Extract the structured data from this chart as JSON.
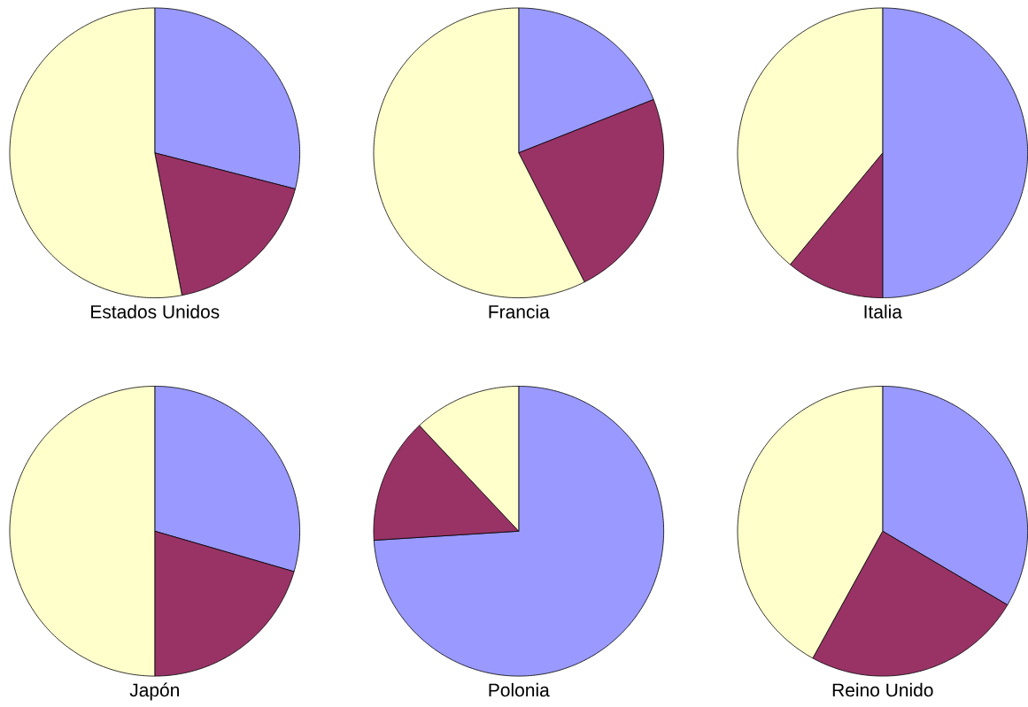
{
  "chart_data": [
    {
      "type": "pie",
      "title": "Estados Unidos",
      "categories": [
        null,
        null,
        null
      ],
      "values": [
        29,
        18,
        53
      ],
      "colors": [
        "#9999ff",
        "#993366",
        "#ffffcc"
      ]
    },
    {
      "type": "pie",
      "title": "Francia",
      "categories": [
        null,
        null,
        null
      ],
      "values": [
        19,
        23.5,
        57.5
      ],
      "colors": [
        "#9999ff",
        "#993366",
        "#ffffcc"
      ]
    },
    {
      "type": "pie",
      "title": "Italia",
      "categories": [
        null,
        null,
        null
      ],
      "values": [
        50,
        11,
        39
      ],
      "colors": [
        "#9999ff",
        "#993366",
        "#ffffcc"
      ]
    },
    {
      "type": "pie",
      "title": "Japón",
      "categories": [
        null,
        null,
        null
      ],
      "values": [
        29.5,
        20.5,
        50
      ],
      "colors": [
        "#9999ff",
        "#993366",
        "#ffffcc"
      ]
    },
    {
      "type": "pie",
      "title": "Polonia",
      "categories": [
        null,
        null,
        null
      ],
      "values": [
        74,
        14,
        12
      ],
      "colors": [
        "#9999ff",
        "#993366",
        "#ffffcc"
      ]
    },
    {
      "type": "pie",
      "title": "Reino Unido",
      "categories": [
        null,
        null,
        null
      ],
      "values": [
        33.5,
        24.5,
        42
      ],
      "colors": [
        "#9999ff",
        "#993366",
        "#ffffcc"
      ]
    }
  ]
}
